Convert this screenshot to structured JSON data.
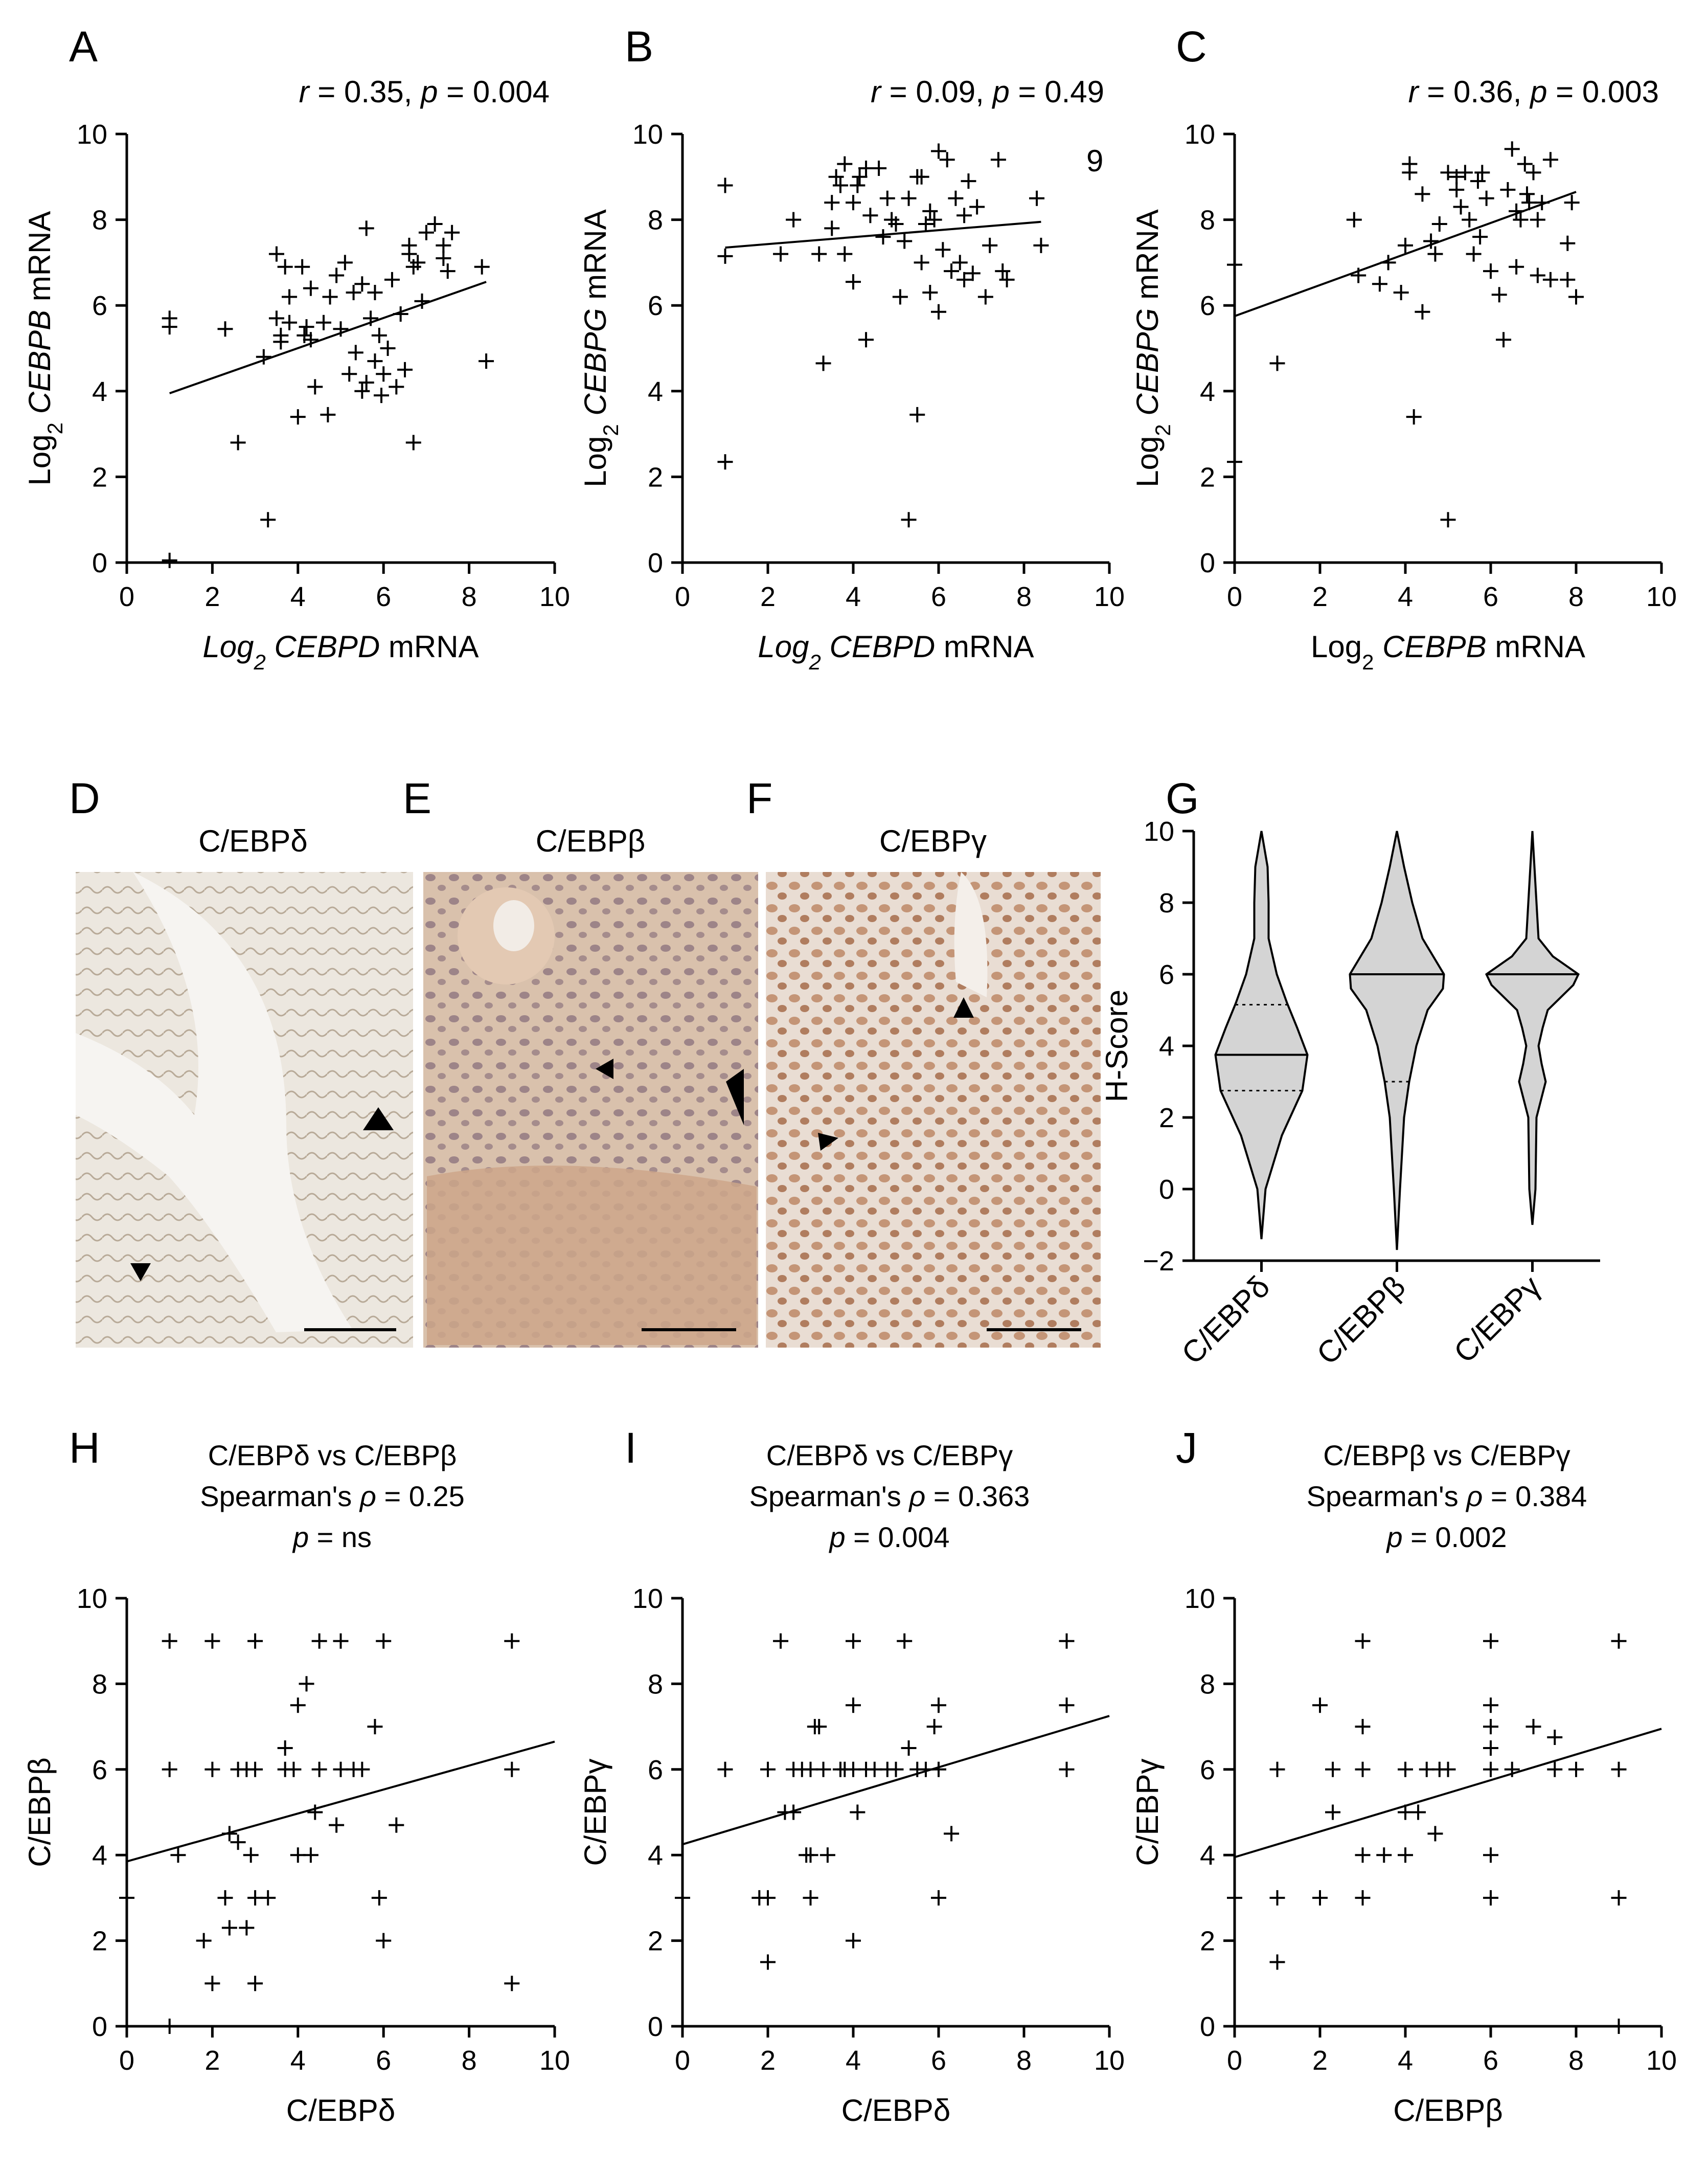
{
  "figure": {
    "panels": {
      "A": {
        "letter": "A",
        "stat": "r = 0.35, p = 0.004"
      },
      "B": {
        "letter": "B",
        "stat": "r = 0.09, p = 0.49",
        "extra": "9"
      },
      "C": {
        "letter": "C",
        "stat": "r = 0.36, p = 0.003"
      },
      "D": {
        "letter": "D",
        "title": "C/EBPδ"
      },
      "E": {
        "letter": "E",
        "title": "C/EBPβ"
      },
      "F": {
        "letter": "F",
        "title": "C/EBPγ"
      },
      "G": {
        "letter": "G"
      },
      "H": {
        "letter": "H",
        "title_lines": [
          "C/EBPδ  vs C/EBPβ",
          "Spearman's ρ = 0.25",
          "p = ns"
        ]
      },
      "I": {
        "letter": "I",
        "title_lines": [
          "C/EBPδ vs C/EBPγ",
          "Spearman's ρ = 0.363",
          "p = 0.004"
        ]
      },
      "J": {
        "letter": "J",
        "title_lines": [
          "C/EBPβ vs C/EBPγ",
          "Spearman's ρ = 0.384",
          "p = 0.002"
        ]
      }
    }
  },
  "chart_data": [
    {
      "id": "A",
      "type": "scatter",
      "xlabel": "Log2 CEBPD mRNA",
      "ylabel": "Log2 CEBPB mRNA",
      "xlim": [
        0,
        10
      ],
      "ylim": [
        0,
        10
      ],
      "xticks": [
        0,
        2,
        4,
        6,
        8,
        10
      ],
      "yticks": [
        0,
        2,
        4,
        6,
        8,
        10
      ],
      "fit": {
        "x": [
          1,
          8.4
        ],
        "y": [
          3.95,
          6.55
        ]
      },
      "points": [
        [
          1.0,
          5.7
        ],
        [
          1.0,
          5.5
        ],
        [
          1.0,
          0.05
        ],
        [
          2.3,
          5.45
        ],
        [
          2.6,
          2.8
        ],
        [
          3.2,
          4.8
        ],
        [
          3.3,
          1.0
        ],
        [
          3.5,
          7.2
        ],
        [
          3.5,
          5.7
        ],
        [
          3.6,
          5.3
        ],
        [
          3.6,
          5.15
        ],
        [
          3.7,
          6.9
        ],
        [
          3.8,
          6.2
        ],
        [
          3.8,
          5.6
        ],
        [
          4.0,
          3.4
        ],
        [
          4.1,
          6.9
        ],
        [
          4.15,
          5.3
        ],
        [
          4.2,
          5.5
        ],
        [
          4.3,
          6.4
        ],
        [
          4.3,
          5.2
        ],
        [
          4.4,
          4.1
        ],
        [
          4.6,
          5.6
        ],
        [
          4.7,
          3.45
        ],
        [
          4.75,
          6.2
        ],
        [
          4.9,
          6.7
        ],
        [
          5.0,
          5.45
        ],
        [
          5.1,
          7.0
        ],
        [
          5.2,
          4.4
        ],
        [
          5.3,
          6.3
        ],
        [
          5.35,
          4.9
        ],
        [
          5.5,
          6.5
        ],
        [
          5.5,
          4.0
        ],
        [
          5.6,
          7.8
        ],
        [
          5.6,
          4.2
        ],
        [
          5.7,
          5.7
        ],
        [
          5.8,
          4.7
        ],
        [
          5.8,
          6.3
        ],
        [
          5.9,
          5.3
        ],
        [
          5.95,
          3.9
        ],
        [
          6.0,
          4.4
        ],
        [
          6.1,
          5.0
        ],
        [
          6.2,
          6.6
        ],
        [
          6.3,
          4.1
        ],
        [
          6.4,
          5.8
        ],
        [
          6.5,
          4.5
        ],
        [
          6.6,
          7.2
        ],
        [
          6.6,
          7.4
        ],
        [
          6.7,
          6.9
        ],
        [
          6.7,
          2.8
        ],
        [
          6.8,
          7.0
        ],
        [
          6.9,
          6.1
        ],
        [
          7.0,
          7.7
        ],
        [
          7.2,
          7.9
        ],
        [
          7.4,
          7.4
        ],
        [
          7.4,
          7.1
        ],
        [
          7.6,
          7.7
        ],
        [
          7.5,
          6.8
        ],
        [
          8.3,
          6.9
        ],
        [
          8.4,
          4.7
        ]
      ]
    },
    {
      "id": "B",
      "type": "scatter",
      "xlabel": "Log2 CEBPD mRNA",
      "ylabel": "Log2 CEBPG mRNA",
      "xlim": [
        0,
        10
      ],
      "ylim": [
        0,
        10
      ],
      "xticks": [
        0,
        2,
        4,
        6,
        8,
        10
      ],
      "yticks": [
        0,
        2,
        4,
        6,
        8,
        10
      ],
      "fit": {
        "x": [
          1,
          8.4
        ],
        "y": [
          7.35,
          7.95
        ]
      },
      "points": [
        [
          1.0,
          8.8
        ],
        [
          1.0,
          7.15
        ],
        [
          1.0,
          2.35
        ],
        [
          2.3,
          7.2
        ],
        [
          2.6,
          8.0
        ],
        [
          3.2,
          7.2
        ],
        [
          3.3,
          4.65
        ],
        [
          3.5,
          8.4
        ],
        [
          3.5,
          7.8
        ],
        [
          3.6,
          9.0
        ],
        [
          3.7,
          8.8
        ],
        [
          3.8,
          7.2
        ],
        [
          3.8,
          9.3
        ],
        [
          4.0,
          8.4
        ],
        [
          4.0,
          6.55
        ],
        [
          4.1,
          8.8
        ],
        [
          4.15,
          9.0
        ],
        [
          4.3,
          9.2
        ],
        [
          4.3,
          5.2
        ],
        [
          4.4,
          8.1
        ],
        [
          4.6,
          9.2
        ],
        [
          4.7,
          7.6
        ],
        [
          4.8,
          8.5
        ],
        [
          4.9,
          8.0
        ],
        [
          5.0,
          7.9
        ],
        [
          5.1,
          6.2
        ],
        [
          5.2,
          7.5
        ],
        [
          5.3,
          8.5
        ],
        [
          5.3,
          1.0
        ],
        [
          5.5,
          9.0
        ],
        [
          5.5,
          3.45
        ],
        [
          5.6,
          9.0
        ],
        [
          5.6,
          7.0
        ],
        [
          5.7,
          7.9
        ],
        [
          5.8,
          8.2
        ],
        [
          5.8,
          6.3
        ],
        [
          5.9,
          8.0
        ],
        [
          6.0,
          5.85
        ],
        [
          6.0,
          9.6
        ],
        [
          6.1,
          7.3
        ],
        [
          6.2,
          9.4
        ],
        [
          6.3,
          6.8
        ],
        [
          6.4,
          8.5
        ],
        [
          6.5,
          7.0
        ],
        [
          6.6,
          8.1
        ],
        [
          6.6,
          6.6
        ],
        [
          6.7,
          8.9
        ],
        [
          6.8,
          6.75
        ],
        [
          6.9,
          8.3
        ],
        [
          7.1,
          6.2
        ],
        [
          7.2,
          7.4
        ],
        [
          7.4,
          9.4
        ],
        [
          7.5,
          6.8
        ],
        [
          7.6,
          6.6
        ],
        [
          8.3,
          8.5
        ],
        [
          8.4,
          7.4
        ]
      ]
    },
    {
      "id": "C",
      "type": "scatter",
      "xlabel": "Log2 CEBPB mRNA",
      "ylabel": "Log2 CEBPG mRNA",
      "xlim": [
        0,
        10
      ],
      "ylim": [
        0,
        10
      ],
      "xticks": [
        0,
        2,
        4,
        6,
        8,
        10
      ],
      "yticks": [
        0,
        2,
        4,
        6,
        8,
        10
      ],
      "fit": {
        "x": [
          0,
          8
        ],
        "y": [
          5.75,
          8.65
        ]
      },
      "points": [
        [
          0,
          6.95
        ],
        [
          0,
          2.35
        ],
        [
          1.0,
          4.65
        ],
        [
          2.8,
          8.0
        ],
        [
          2.9,
          6.7
        ],
        [
          3.4,
          6.5
        ],
        [
          3.6,
          7.0
        ],
        [
          3.9,
          6.3
        ],
        [
          4.0,
          7.4
        ],
        [
          4.1,
          9.3
        ],
        [
          4.1,
          9.1
        ],
        [
          4.2,
          3.4
        ],
        [
          4.4,
          8.6
        ],
        [
          4.4,
          5.85
        ],
        [
          4.6,
          7.5
        ],
        [
          4.7,
          7.2
        ],
        [
          4.8,
          7.9
        ],
        [
          5.0,
          9.1
        ],
        [
          5.0,
          1.0
        ],
        [
          5.2,
          9.0
        ],
        [
          5.2,
          8.7
        ],
        [
          5.3,
          8.3
        ],
        [
          5.4,
          9.1
        ],
        [
          5.5,
          8.0
        ],
        [
          5.6,
          7.2
        ],
        [
          5.7,
          8.9
        ],
        [
          5.75,
          7.6
        ],
        [
          5.8,
          9.1
        ],
        [
          5.9,
          8.5
        ],
        [
          6.0,
          6.8
        ],
        [
          6.2,
          6.25
        ],
        [
          6.3,
          5.2
        ],
        [
          6.4,
          8.7
        ],
        [
          6.5,
          9.65
        ],
        [
          6.6,
          8.2
        ],
        [
          6.6,
          6.9
        ],
        [
          6.7,
          8.0
        ],
        [
          6.8,
          9.3
        ],
        [
          6.85,
          8.6
        ],
        [
          6.9,
          8.4
        ],
        [
          7.0,
          9.1
        ],
        [
          7.1,
          8.0
        ],
        [
          7.1,
          6.7
        ],
        [
          7.2,
          8.4
        ],
        [
          7.4,
          9.4
        ],
        [
          7.4,
          6.6
        ],
        [
          7.8,
          6.6
        ],
        [
          7.8,
          7.45
        ],
        [
          7.9,
          8.4
        ],
        [
          8.0,
          6.2
        ]
      ]
    },
    {
      "id": "G",
      "type": "violin",
      "ylabel": "H-Score",
      "ylim": [
        -2,
        10
      ],
      "yticks": [
        -2,
        0,
        2,
        4,
        6,
        8,
        10
      ],
      "categories": [
        "C/EBPδ",
        "C/EBPβ",
        "C/EBPγ"
      ],
      "series": [
        {
          "name": "C/EBPδ",
          "min": -1.4,
          "max": 10,
          "median": 3.75,
          "q1": 2.75,
          "q3": 5.15
        },
        {
          "name": "C/EBPβ",
          "min": -1.7,
          "max": 10,
          "median": 6.0,
          "q1": 3.0,
          "q3": 6.0
        },
        {
          "name": "C/EBPγ",
          "min": -1.0,
          "max": 10,
          "median": 6.0,
          "q1": 6.0,
          "q3": 6.0
        }
      ]
    },
    {
      "id": "H",
      "type": "scatter",
      "xlabel": "C/EBPδ",
      "ylabel": "C/EBPβ",
      "xlim": [
        0,
        10
      ],
      "ylim": [
        0,
        10
      ],
      "xticks": [
        0,
        2,
        4,
        6,
        8,
        10
      ],
      "yticks": [
        0,
        2,
        4,
        6,
        8,
        10
      ],
      "fit": {
        "x": [
          0,
          10
        ],
        "y": [
          3.85,
          6.65
        ]
      },
      "points": [
        [
          0,
          3
        ],
        [
          1,
          9
        ],
        [
          1,
          6
        ],
        [
          1,
          0
        ],
        [
          1.2,
          4
        ],
        [
          1.8,
          2
        ],
        [
          2,
          9
        ],
        [
          2,
          6
        ],
        [
          2,
          1
        ],
        [
          2.3,
          3
        ],
        [
          2.4,
          2.3
        ],
        [
          2.4,
          4.5
        ],
        [
          2.6,
          6
        ],
        [
          2.6,
          4.3
        ],
        [
          2.8,
          6
        ],
        [
          2.8,
          2.3
        ],
        [
          2.9,
          4
        ],
        [
          3,
          9
        ],
        [
          3,
          6
        ],
        [
          3,
          3
        ],
        [
          3,
          1
        ],
        [
          3.3,
          3
        ],
        [
          3.7,
          6.5
        ],
        [
          3.7,
          6
        ],
        [
          3.9,
          6
        ],
        [
          4,
          7.5
        ],
        [
          4,
          4
        ],
        [
          4.2,
          8
        ],
        [
          4.3,
          4
        ],
        [
          4.4,
          5
        ],
        [
          4.5,
          9
        ],
        [
          4.5,
          6
        ],
        [
          4.9,
          4.7
        ],
        [
          5,
          9
        ],
        [
          5,
          6
        ],
        [
          5.3,
          6
        ],
        [
          5.5,
          6
        ],
        [
          5.8,
          7
        ],
        [
          5.9,
          3
        ],
        [
          6,
          9
        ],
        [
          6,
          2
        ],
        [
          6.3,
          4.7
        ],
        [
          9,
          9
        ],
        [
          9,
          6
        ],
        [
          9,
          1
        ]
      ]
    },
    {
      "id": "I",
      "type": "scatter",
      "xlabel": "C/EBPδ",
      "ylabel": "C/EBPγ",
      "xlim": [
        0,
        10
      ],
      "ylim": [
        0,
        10
      ],
      "xticks": [
        0,
        2,
        4,
        6,
        8,
        10
      ],
      "yticks": [
        0,
        2,
        4,
        6,
        8,
        10
      ],
      "fit": {
        "x": [
          0,
          10
        ],
        "y": [
          4.25,
          7.25
        ]
      },
      "points": [
        [
          0,
          3
        ],
        [
          1,
          6
        ],
        [
          1.8,
          3
        ],
        [
          2,
          3
        ],
        [
          2,
          1.5
        ],
        [
          2,
          6
        ],
        [
          2.3,
          9
        ],
        [
          2.4,
          5
        ],
        [
          2.6,
          5
        ],
        [
          2.6,
          6
        ],
        [
          2.8,
          6
        ],
        [
          2.9,
          4
        ],
        [
          3,
          6
        ],
        [
          3,
          4
        ],
        [
          3,
          3
        ],
        [
          3.1,
          7
        ],
        [
          3.2,
          7
        ],
        [
          3.3,
          6
        ],
        [
          3.4,
          4
        ],
        [
          3.7,
          6
        ],
        [
          3.8,
          6
        ],
        [
          4,
          9
        ],
        [
          4,
          7.5
        ],
        [
          4,
          6
        ],
        [
          4,
          2
        ],
        [
          4.1,
          5
        ],
        [
          4.3,
          6
        ],
        [
          4.5,
          6
        ],
        [
          4.8,
          6
        ],
        [
          5,
          6
        ],
        [
          5.2,
          9
        ],
        [
          5.3,
          6.5
        ],
        [
          5.5,
          6
        ],
        [
          5.7,
          6
        ],
        [
          5.9,
          7
        ],
        [
          6,
          7.5
        ],
        [
          6,
          6
        ],
        [
          6,
          3
        ],
        [
          6.3,
          4.5
        ],
        [
          9,
          9
        ],
        [
          9,
          7.5
        ],
        [
          9,
          6
        ]
      ]
    },
    {
      "id": "J",
      "type": "scatter",
      "xlabel": "C/EBPβ",
      "ylabel": "C/EBPγ",
      "xlim": [
        0,
        10
      ],
      "ylim": [
        0,
        10
      ],
      "xticks": [
        0,
        2,
        4,
        6,
        8,
        10
      ],
      "yticks": [
        0,
        2,
        4,
        6,
        8,
        10
      ],
      "fit": {
        "x": [
          0,
          10
        ],
        "y": [
          3.95,
          6.95
        ]
      },
      "points": [
        [
          0,
          3
        ],
        [
          1,
          6
        ],
        [
          1,
          3
        ],
        [
          1,
          1.5
        ],
        [
          2,
          7.5
        ],
        [
          2,
          3
        ],
        [
          2.3,
          5
        ],
        [
          2.3,
          6
        ],
        [
          3,
          9
        ],
        [
          3,
          7
        ],
        [
          3,
          6
        ],
        [
          3,
          4
        ],
        [
          3,
          3
        ],
        [
          3.5,
          4
        ],
        [
          4,
          6
        ],
        [
          4,
          5
        ],
        [
          4,
          4
        ],
        [
          4.3,
          5
        ],
        [
          4.5,
          6
        ],
        [
          4.7,
          4.5
        ],
        [
          4.8,
          6
        ],
        [
          5,
          6
        ],
        [
          6,
          9
        ],
        [
          6,
          7.5
        ],
        [
          6,
          7
        ],
        [
          6,
          6.5
        ],
        [
          6,
          6
        ],
        [
          6,
          4
        ],
        [
          6,
          3
        ],
        [
          6.5,
          6
        ],
        [
          7,
          7
        ],
        [
          7.5,
          6.75
        ],
        [
          7.5,
          6
        ],
        [
          8,
          6
        ],
        [
          9,
          9
        ],
        [
          9,
          6
        ],
        [
          9,
          3
        ],
        [
          9,
          0
        ]
      ]
    }
  ]
}
